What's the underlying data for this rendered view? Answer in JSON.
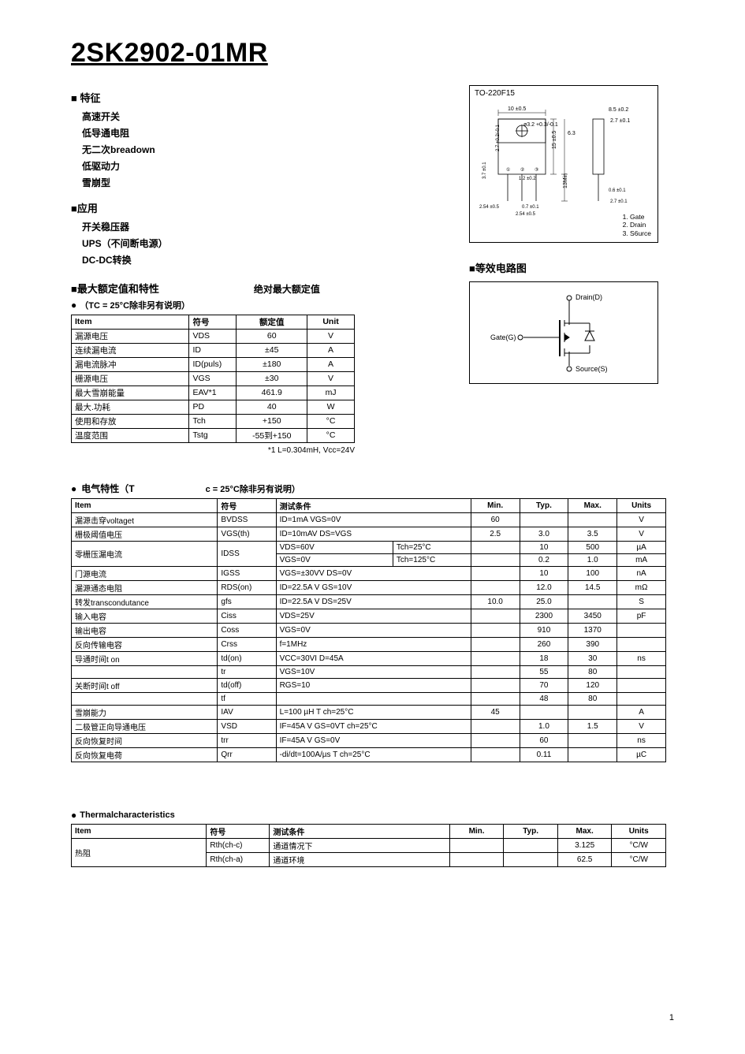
{
  "title": "2SK2902-01MR",
  "sections": {
    "features": {
      "heading": "■ 特征",
      "items": [
        "高速开关",
        "低导通电阻",
        "无二次breadown",
        "低驱动力",
        "雪崩型"
      ]
    },
    "applications": {
      "heading": "■应用",
      "items": [
        "开关稳压器",
        "UPS（不间断电源）",
        "DC-DC转换"
      ]
    },
    "ratings_heading": "■最大额定值和特性",
    "abs_max_label": "绝对最大额定值",
    "condition_tc": "（TC = 25°C除非另有说明）",
    "eq_circuit_heading": "■等效电路图",
    "electrical_heading": "电气特性（T",
    "electrical_cond": "c = 25°C除非另有说明）",
    "thermal_heading": "Thermalcharacteristics"
  },
  "package": {
    "name": "TO-220F15",
    "dims": {
      "w_body": "10 ±0.5",
      "mount": "ø3.2 +0.3/-0.1",
      "r1": "8.5 ±0.2",
      "r2": "2.7 ±0.1",
      "h1": "6.3",
      "h2": "15 ±0.5",
      "h3": "13Min",
      "t1": "2.7 +0.2/-0.1",
      "pitch": "1.2 ±0.2",
      "lead": "0.7 ±0.1",
      "lead2": "0.6 ±0.1",
      "lead3": "2.7 ±0.1",
      "off1": "3.7 ±0.1",
      "base": "2.54 ±0.5",
      "base2": "2.54 ±0.5"
    },
    "pins": [
      "1. Gate",
      "2. Drain",
      "3. S6urce"
    ]
  },
  "eq_circuit": {
    "drain": "Drain(D)",
    "gate": "Gate(G)",
    "source": "Source(S)"
  },
  "ratings_table": {
    "columns": [
      "Item",
      "符号",
      "额定值",
      "Unit"
    ],
    "rows": [
      [
        "漏源电压",
        "VDS",
        "60",
        "V"
      ],
      [
        "连续漏电流",
        "ID",
        "±45",
        "A"
      ],
      [
        "漏电流脉冲",
        "ID(puls)",
        "±180",
        "A"
      ],
      [
        "栅源电压",
        "VGS",
        "±30",
        "V"
      ],
      [
        "最大雪崩能量",
        "EAV*1",
        "461.9",
        "mJ"
      ],
      [
        "最大.功耗",
        "PD",
        "40",
        "W"
      ],
      [
        "使用和存放",
        "Tch",
        "+150",
        "°C"
      ],
      [
        "温度范围",
        "Tstg",
        "-55到+150",
        "°C"
      ]
    ],
    "footnote": "*1 L=0.304mH, Vcc=24V"
  },
  "electrical_table": {
    "columns": [
      "Item",
      "符号",
      "测试条件",
      "",
      "Min.",
      "Typ.",
      "Max.",
      "Units"
    ],
    "rows": [
      {
        "item": "漏源击穿voltaget",
        "sym": "BVDSS",
        "cond": "ID=1mA    VGS=0V",
        "cond2": "",
        "min": "60",
        "typ": "",
        "max": "",
        "unit": "V"
      },
      {
        "item": "栅极阈值电压",
        "sym": "VGS(th)",
        "cond": "ID=10mAV    DS=VGS",
        "cond2": "",
        "min": "2.5",
        "typ": "3.0",
        "max": "3.5",
        "unit": "V"
      },
      {
        "item": "零栅压漏电流",
        "sym": "IDSS",
        "cond": "VDS=60V",
        "cond2": "Tch=25°C",
        "min": "",
        "typ": "10",
        "max": "500",
        "unit": "µA",
        "rs": 2
      },
      {
        "item": "",
        "sym": "",
        "cond": "VGS=0V",
        "cond2": "Tch=125°C",
        "min": "",
        "typ": "0.2",
        "max": "1.0",
        "unit": "mA"
      },
      {
        "item": "门源电流",
        "sym": "IGSS",
        "cond": "VGS=±30VV  DS=0V",
        "cond2": "",
        "min": "",
        "typ": "10",
        "max": "100",
        "unit": "nA"
      },
      {
        "item": "漏源通态电阻",
        "sym": "RDS(on)",
        "cond": "ID=22.5A V    GS=10V",
        "cond2": "",
        "min": "",
        "typ": "12.0",
        "max": "14.5",
        "unit": "mΩ"
      },
      {
        "item": "转发transcondutance",
        "sym": "gfs",
        "cond": "ID=22.5A V    DS=25V",
        "cond2": "",
        "min": "10.0",
        "typ": "25.0",
        "max": "",
        "unit": "S"
      },
      {
        "item": "输入电容",
        "sym": "Ciss",
        "cond": "VDS=25V",
        "cond2": "",
        "min": "",
        "typ": "2300",
        "max": "3450",
        "unit": "pF",
        "capgroup": true
      },
      {
        "item": "输出电容",
        "sym": "Coss",
        "cond": "VGS=0V",
        "cond2": "",
        "min": "",
        "typ": "910",
        "max": "1370",
        "unit": ""
      },
      {
        "item": "反向传输电容",
        "sym": "Crss",
        "cond": "f=1MHz",
        "cond2": "",
        "min": "",
        "typ": "260",
        "max": "390",
        "unit": ""
      },
      {
        "item": "导通时间t      on",
        "sym": "td(on)",
        "cond": "VCC=30VI   D=45A",
        "cond2": "",
        "min": "",
        "typ": "18",
        "max": "30",
        "unit": "ns",
        "tgroup": true
      },
      {
        "item": "",
        "sym": "tr",
        "cond": "VGS=10V",
        "cond2": "",
        "min": "",
        "typ": "55",
        "max": "80",
        "unit": ""
      },
      {
        "item": "关断时间t      off",
        "sym": "td(off)",
        "cond": "RGS=10",
        "cond2": "",
        "min": "",
        "typ": "70",
        "max": "120",
        "unit": ""
      },
      {
        "item": "",
        "sym": "tf",
        "cond": "",
        "cond2": "",
        "min": "",
        "typ": "48",
        "max": "80",
        "unit": ""
      },
      {
        "item": "雪崩能力",
        "sym": "IAV",
        "cond": "L=100 µH T  ch=25°C",
        "cond2": "",
        "min": "45",
        "typ": "",
        "max": "",
        "unit": "A"
      },
      {
        "item": "二极管正向导通电压",
        "sym": "VSD",
        "cond": "IF=45A V    GS=0VT    ch=25°C",
        "cond2": "",
        "min": "",
        "typ": "1.0",
        "max": "1.5",
        "unit": "V"
      },
      {
        "item": "反向恢复时间",
        "sym": "trr",
        "cond": "IF=45A V    GS=0V",
        "cond2": "",
        "min": "",
        "typ": "60",
        "max": "",
        "unit": "ns"
      },
      {
        "item": "反向恢复电荷",
        "sym": "Qrr",
        "cond": "-di/dt=100A/µs T    ch=25°C",
        "cond2": "",
        "min": "",
        "typ": "0.11",
        "max": "",
        "unit": "µC"
      }
    ]
  },
  "thermal_table": {
    "columns": [
      "Item",
      "符号",
      "测试条件",
      "Min.",
      "Typ.",
      "Max.",
      "Units"
    ],
    "rows": [
      {
        "item": "热阻",
        "sym": "Rth(ch-c)",
        "cond": "通道情况下",
        "min": "",
        "typ": "",
        "max": "3.125",
        "unit": "°C/W",
        "rs": 2
      },
      {
        "item": "",
        "sym": "Rth(ch-a)",
        "cond": "通道环境",
        "min": "",
        "typ": "",
        "max": "62.5",
        "unit": "°C/W"
      }
    ]
  },
  "pagenum": "1"
}
